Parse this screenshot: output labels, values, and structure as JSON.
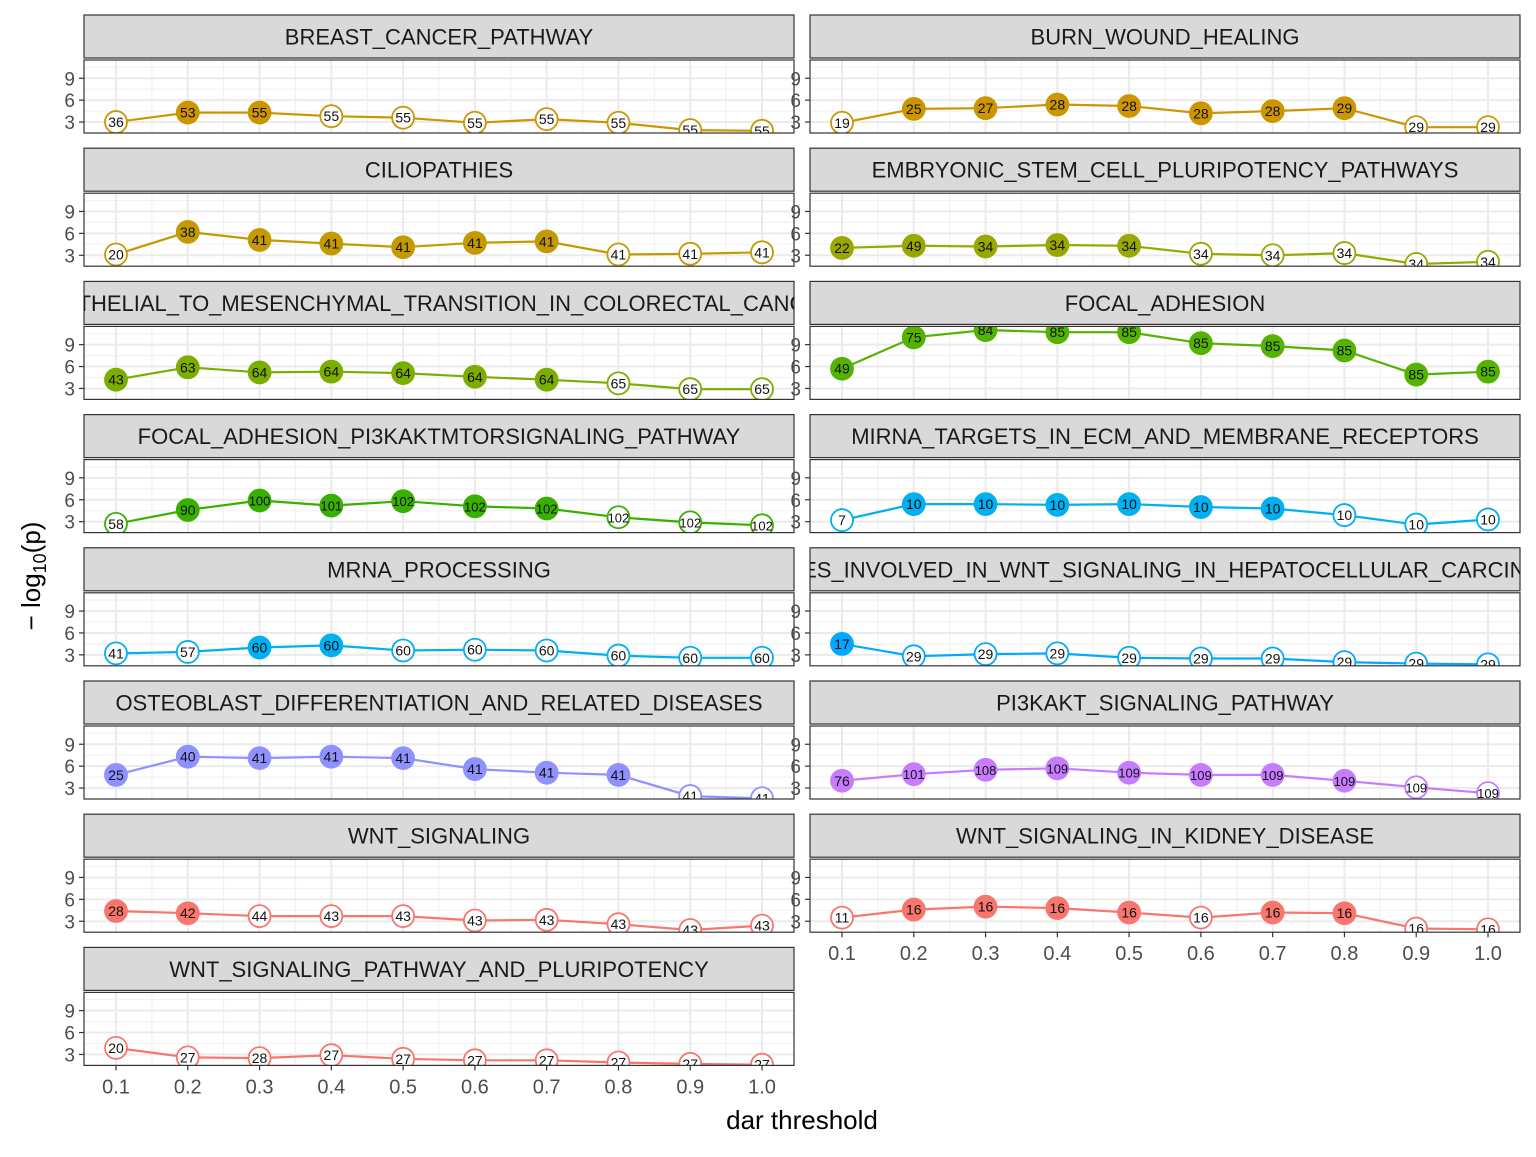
{
  "chart_data": {
    "type": "line",
    "xlabel": "dar threshold",
    "ylabel": "− log10(p)",
    "ylabel_parts": {
      "prefix": "− log",
      "sub": "10",
      "suffix": "(p)"
    },
    "x": [
      0.1,
      0.2,
      0.3,
      0.4,
      0.5,
      0.6,
      0.7,
      0.8,
      0.9,
      1.0
    ],
    "x_tick_labels": [
      "0.1",
      "0.2",
      "0.3",
      "0.4",
      "0.5",
      "0.6",
      "0.7",
      "0.8",
      "0.9",
      "1.0"
    ],
    "y_ticks": [
      3,
      6,
      9
    ],
    "y_tick_labels": [
      "3",
      "6",
      "9"
    ],
    "ylim": [
      1.5,
      11.5
    ],
    "grid": true,
    "significance_threshold": 4,
    "panels": [
      {
        "title": "BREAST_CANCER_PATHWAY",
        "color": "#CD9600",
        "values": [
          3.0,
          4.3,
          4.3,
          3.8,
          3.6,
          2.9,
          3.4,
          2.9,
          1.9,
          1.8
        ],
        "labels": [
          "36",
          "53",
          "55",
          "55",
          "55",
          "55",
          "55",
          "55",
          "55",
          "55"
        ]
      },
      {
        "title": "BURN_WOUND_HEALING",
        "color": "#CD9600",
        "values": [
          2.9,
          4.8,
          4.9,
          5.4,
          5.2,
          4.2,
          4.5,
          4.9,
          2.3,
          2.3
        ],
        "labels": [
          "19",
          "25",
          "27",
          "28",
          "28",
          "28",
          "28",
          "29",
          "29",
          "29"
        ]
      },
      {
        "title": "CILIOPATHIES",
        "color": "#C49A00",
        "values": [
          3.1,
          6.2,
          5.1,
          4.6,
          4.1,
          4.7,
          4.9,
          3.1,
          3.2,
          3.4
        ],
        "labels": [
          "20",
          "38",
          "41",
          "41",
          "41",
          "41",
          "41",
          "41",
          "41",
          "41"
        ]
      },
      {
        "title": "EMBRYONIC_STEM_CELL_PLURIPOTENCY_PATHWAYS",
        "color": "#99A800",
        "values": [
          4.0,
          4.3,
          4.2,
          4.4,
          4.3,
          3.2,
          3.0,
          3.3,
          1.8,
          2.1
        ],
        "labels": [
          "22",
          "49",
          "34",
          "34",
          "34",
          "34",
          "34",
          "34",
          "34",
          "34"
        ]
      },
      {
        "title": "EPITHELIAL_TO_MESENCHYMAL_TRANSITION_IN_COLORECTAL_CANCER",
        "color": "#7CAE00",
        "values": [
          4.2,
          5.9,
          5.2,
          5.3,
          5.1,
          4.6,
          4.2,
          3.7,
          2.9,
          2.9
        ],
        "labels": [
          "43",
          "63",
          "64",
          "64",
          "64",
          "64",
          "64",
          "65",
          "65",
          "65"
        ]
      },
      {
        "title": "FOCAL_ADHESION",
        "color": "#53B400",
        "values": [
          5.7,
          10.0,
          11.0,
          10.7,
          10.7,
          9.2,
          8.8,
          8.2,
          4.9,
          5.3
        ],
        "labels": [
          "49",
          "75",
          "84",
          "85",
          "85",
          "85",
          "85",
          "85",
          "85",
          "85"
        ]
      },
      {
        "title": "FOCAL_ADHESION_PI3KAKTMTORSIGNALING_PATHWAY",
        "color": "#38B000",
        "values": [
          2.7,
          4.6,
          5.9,
          5.2,
          5.8,
          5.1,
          4.8,
          3.6,
          2.9,
          2.5
        ],
        "labels": [
          "58",
          "90",
          "100",
          "101",
          "102",
          "102",
          "102",
          "102",
          "102",
          "102"
        ]
      },
      {
        "title": "MIRNA_TARGETS_IN_ECM_AND_MEMBRANE_RECEPTORS",
        "color": "#00B0F0",
        "values": [
          3.2,
          5.4,
          5.4,
          5.3,
          5.4,
          5.0,
          4.8,
          3.9,
          2.6,
          3.3
        ],
        "labels": [
          "7",
          "10",
          "10",
          "10",
          "10",
          "10",
          "10",
          "10",
          "10",
          "10"
        ]
      },
      {
        "title": "MRNA_PROCESSING",
        "color": "#00B0F0",
        "values": [
          3.2,
          3.4,
          4.0,
          4.3,
          3.6,
          3.7,
          3.6,
          2.9,
          2.6,
          2.6
        ],
        "labels": [
          "41",
          "57",
          "60",
          "60",
          "60",
          "60",
          "60",
          "60",
          "60",
          "60"
        ]
      },
      {
        "title": "GENES_INVOLVED_IN_WNT_SIGNALING_IN_HEPATOCELLULAR_CARCINOMA",
        "color": "#00A9FF",
        "values": [
          4.5,
          2.8,
          3.1,
          3.2,
          2.6,
          2.5,
          2.5,
          2.0,
          1.8,
          1.7
        ],
        "labels": [
          "17",
          "29",
          "29",
          "29",
          "29",
          "29",
          "29",
          "29",
          "29",
          "29"
        ]
      },
      {
        "title": "OSTEOBLAST_DIFFERENTIATION_AND_RELATED_DISEASES",
        "color": "#8F91FF",
        "values": [
          4.8,
          7.3,
          7.1,
          7.3,
          7.1,
          5.6,
          5.1,
          4.8,
          1.9,
          1.6
        ],
        "labels": [
          "25",
          "40",
          "41",
          "41",
          "41",
          "41",
          "41",
          "41",
          "41",
          "41"
        ]
      },
      {
        "title": "PI3KAKT_SIGNALING_PATHWAY",
        "color": "#C77CFF",
        "values": [
          4.0,
          4.9,
          5.5,
          5.7,
          5.1,
          4.8,
          4.8,
          4.0,
          3.1,
          2.3
        ],
        "labels": [
          "76",
          "101",
          "108",
          "109",
          "109",
          "109",
          "109",
          "109",
          "109",
          "109"
        ]
      },
      {
        "title": "WNT_SIGNALING",
        "color": "#F8766D",
        "values": [
          4.4,
          4.1,
          3.7,
          3.7,
          3.7,
          3.1,
          3.2,
          2.6,
          1.8,
          2.4
        ],
        "labels": [
          "28",
          "42",
          "44",
          "43",
          "43",
          "43",
          "43",
          "43",
          "43",
          "43"
        ]
      },
      {
        "title": "WNT_SIGNALING_IN_KIDNEY_DISEASE",
        "color": "#F8766D",
        "values": [
          3.5,
          4.6,
          5.0,
          4.8,
          4.2,
          3.5,
          4.2,
          4.1,
          2.0,
          1.9
        ],
        "labels": [
          "11",
          "16",
          "16",
          "16",
          "16",
          "16",
          "16",
          "16",
          "16",
          "16"
        ]
      },
      {
        "title": "WNT_SIGNALING_PATHWAY_AND_PLURIPOTENCY",
        "color": "#F8766D",
        "values": [
          3.9,
          2.6,
          2.5,
          2.9,
          2.4,
          2.2,
          2.2,
          1.9,
          1.7,
          1.6
        ],
        "labels": [
          "20",
          "27",
          "28",
          "27",
          "27",
          "27",
          "27",
          "27",
          "27",
          "27"
        ]
      }
    ]
  }
}
